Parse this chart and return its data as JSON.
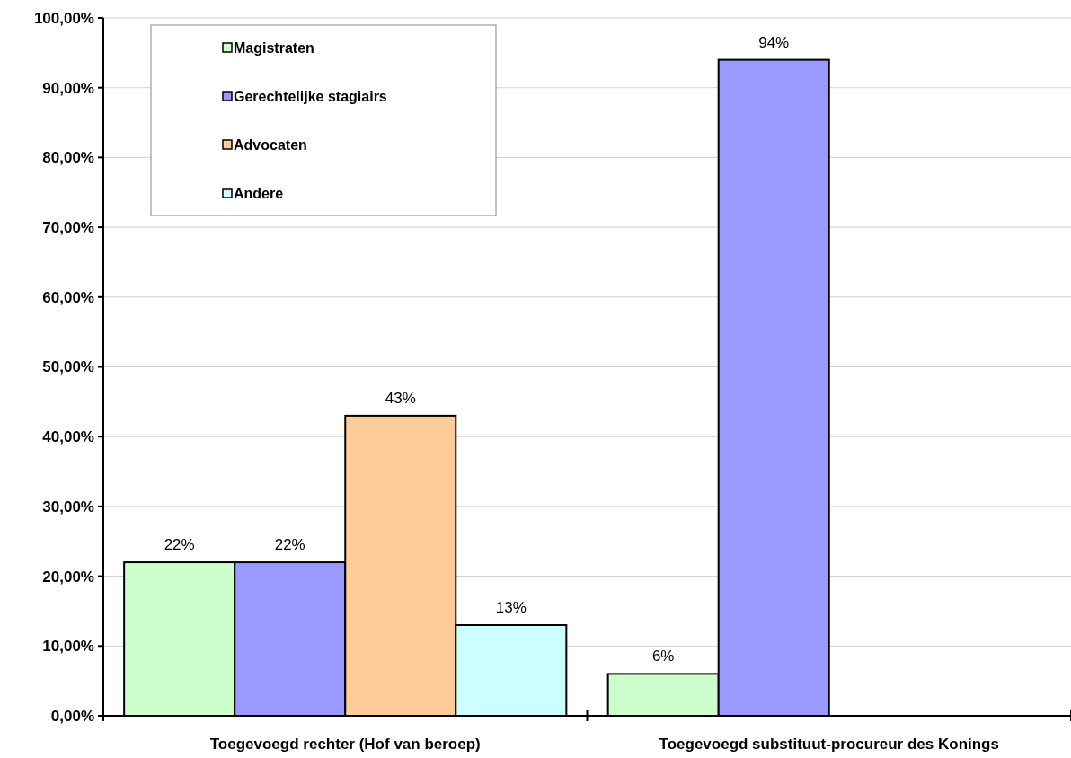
{
  "chart_data": {
    "type": "bar",
    "categories": [
      "Toegevoegd rechter (Hof van beroep)",
      "Toegevoegd substituut-procureur des Konings"
    ],
    "series": [
      {
        "name": "Magistraten",
        "color": "#ccffcc",
        "values": [
          22,
          6
        ],
        "value_labels": [
          "22%",
          "6%"
        ]
      },
      {
        "name": "Gerechtelijke stagiairs",
        "color": "#9999ff",
        "values": [
          22,
          94
        ],
        "value_labels": [
          "22%",
          "94%"
        ]
      },
      {
        "name": "Advocaten",
        "color": "#ffcc99",
        "values": [
          43,
          null
        ],
        "value_labels": [
          "43%",
          null
        ]
      },
      {
        "name": "Andere",
        "color": "#ccffff",
        "values": [
          13,
          null
        ],
        "value_labels": [
          "13%",
          null
        ]
      }
    ],
    "ylim": [
      0,
      100
    ],
    "yticks": [
      {
        "value": 0,
        "label": "0,00%"
      },
      {
        "value": 10,
        "label": "10,00%"
      },
      {
        "value": 20,
        "label": "20,00%"
      },
      {
        "value": 30,
        "label": "30,00%"
      },
      {
        "value": 40,
        "label": "40,00%"
      },
      {
        "value": 50,
        "label": "50,00%"
      },
      {
        "value": 60,
        "label": "60,00%"
      },
      {
        "value": 70,
        "label": "70,00%"
      },
      {
        "value": 80,
        "label": "80,00%"
      },
      {
        "value": 90,
        "label": "90,00%"
      },
      {
        "value": 100,
        "label": "100,00%"
      }
    ],
    "grid": "y",
    "legend": "top left"
  }
}
